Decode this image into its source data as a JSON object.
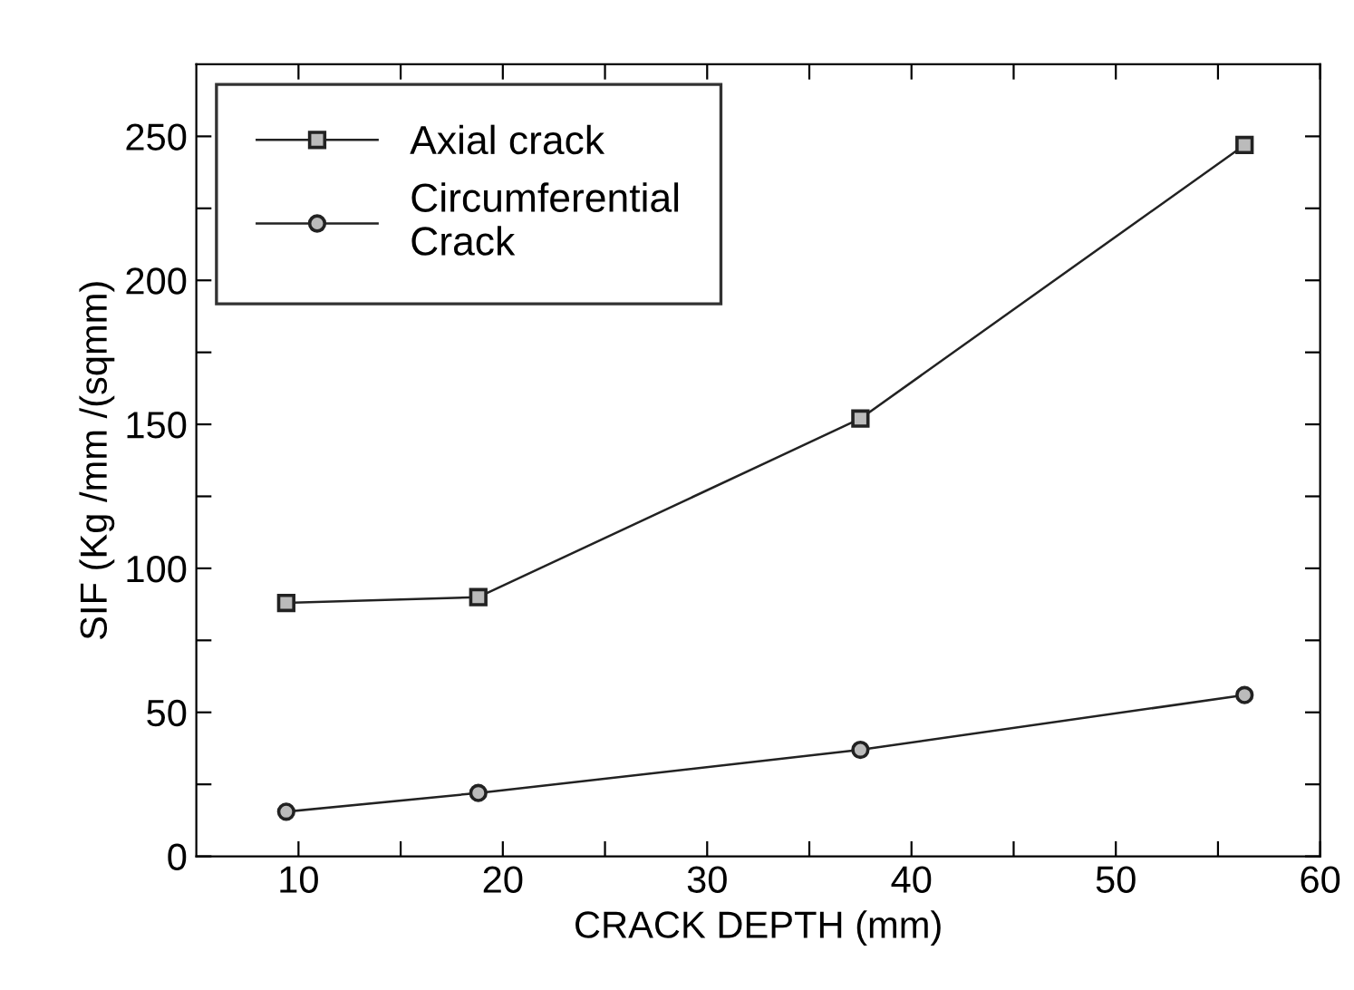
{
  "chart_data": {
    "type": "line",
    "xlabel": "CRACK DEPTH (mm)",
    "ylabel": "SIF (Kg /mm /(sqmm)",
    "x": [
      9.4,
      18.8,
      37.5,
      56.3
    ],
    "series": [
      {
        "name": "Axial crack",
        "color": "#222222",
        "marker": "square",
        "values": [
          88,
          90,
          152,
          247
        ]
      },
      {
        "name": "Circumferential\nCrack",
        "color": "#222222",
        "marker": "circle",
        "values": [
          15.5,
          22,
          37,
          56
        ]
      }
    ],
    "xlim": [
      5,
      60
    ],
    "ylim": [
      0,
      275
    ],
    "xticks": [
      10,
      20,
      30,
      40,
      50,
      60,
      {
        "value": 15,
        "label": null
      },
      {
        "value": 25,
        "label": null
      },
      {
        "value": 35,
        "label": null
      },
      {
        "value": 45,
        "label": null
      },
      {
        "value": 55,
        "label": null
      }
    ],
    "yticks": [
      0,
      50,
      100,
      150,
      200,
      250,
      {
        "value": 25,
        "label": null
      },
      {
        "value": 75,
        "label": null
      },
      {
        "value": 125,
        "label": null
      },
      {
        "value": 175,
        "label": null
      },
      {
        "value": 225,
        "label": null
      }
    ],
    "legend": "top left",
    "grid": false,
    "line_style": "solid"
  }
}
